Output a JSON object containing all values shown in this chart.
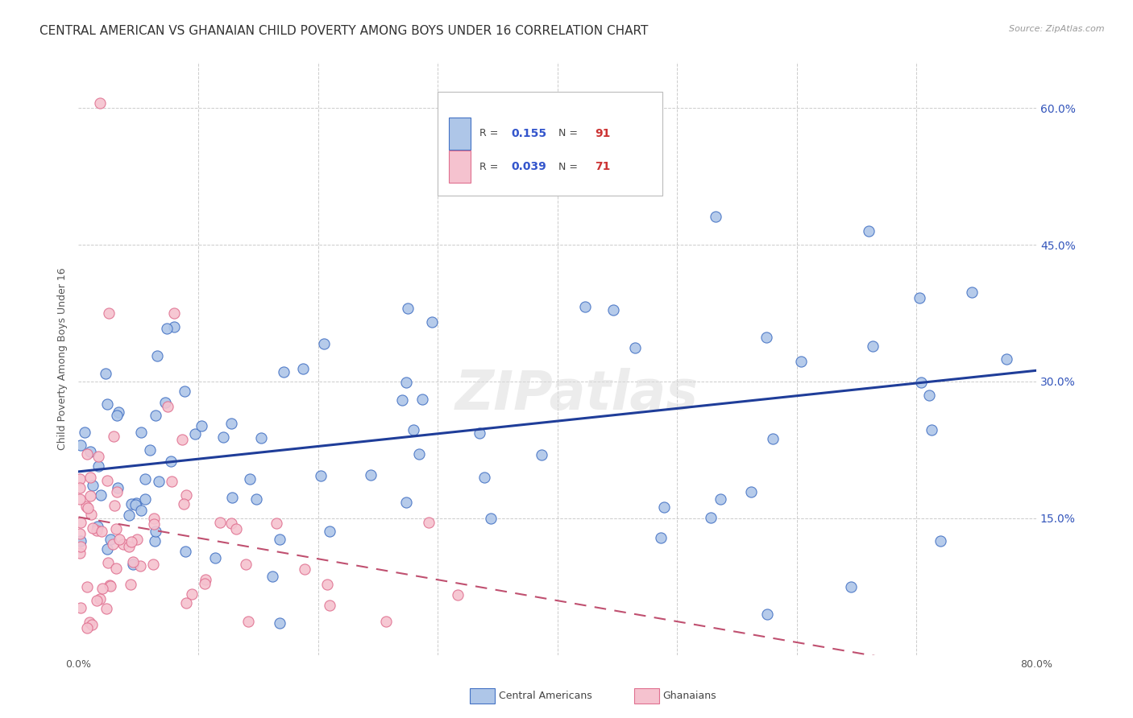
{
  "title": "CENTRAL AMERICAN VS GHANAIAN CHILD POVERTY AMONG BOYS UNDER 16 CORRELATION CHART",
  "source": "Source: ZipAtlas.com",
  "ylabel": "Child Poverty Among Boys Under 16",
  "xlim": [
    0.0,
    0.8
  ],
  "ylim": [
    0.0,
    0.65
  ],
  "xticks": [
    0.0,
    0.1,
    0.2,
    0.3,
    0.4,
    0.5,
    0.6,
    0.7,
    0.8
  ],
  "xticklabels": [
    "0.0%",
    "",
    "",
    "",
    "",
    "",
    "",
    "",
    "80.0%"
  ],
  "yticks_right": [
    0.15,
    0.3,
    0.45,
    0.6
  ],
  "ytick_right_labels": [
    "15.0%",
    "30.0%",
    "45.0%",
    "60.0%"
  ],
  "blue_fill": "#aec6e8",
  "blue_edge": "#4472c4",
  "blue_line": "#1f3d99",
  "pink_fill": "#f5c2cf",
  "pink_edge": "#e07090",
  "pink_line": "#c05070",
  "legend_R_blue": "0.155",
  "legend_N_blue": "91",
  "legend_R_pink": "0.039",
  "legend_N_pink": "71",
  "legend_label_blue": "Central Americans",
  "legend_label_pink": "Ghanaians",
  "watermark": "ZIPatlas",
  "grid_color": "#cccccc",
  "title_fontsize": 11,
  "axis_label_fontsize": 9,
  "tick_fontsize": 9
}
